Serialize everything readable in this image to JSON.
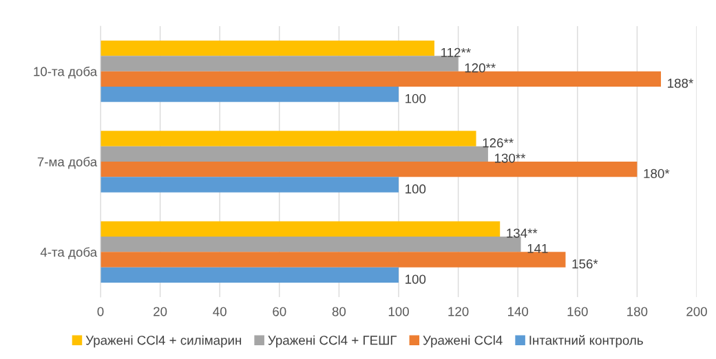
{
  "chart_data": {
    "type": "bar",
    "orientation": "horizontal",
    "categories": [
      "10-та доба",
      "7-ма доба",
      "4-та доба"
    ],
    "series": [
      {
        "name": "Уражені CCl4 + силімарин",
        "color": "#ffc000",
        "values": [
          112,
          126,
          134
        ],
        "value_labels": [
          "112**",
          "126**",
          "134**"
        ]
      },
      {
        "name": "Уражені CCl4 + ГЕШГ",
        "color": "#a5a5a5",
        "values": [
          120,
          130,
          141
        ],
        "value_labels": [
          "120**",
          "130**",
          "141"
        ]
      },
      {
        "name": "Уражені CCl4",
        "color": "#ed7d31",
        "values": [
          188,
          180,
          156
        ],
        "value_labels": [
          "188*",
          "180*",
          "156*"
        ]
      },
      {
        "name": "Інтактний контроль",
        "color": "#5b9bd5",
        "values": [
          100,
          100,
          100
        ],
        "value_labels": [
          "100",
          "100",
          "100"
        ]
      }
    ],
    "xlim": [
      0,
      200
    ],
    "xticks": [
      0,
      20,
      40,
      60,
      80,
      100,
      120,
      140,
      160,
      180,
      200
    ],
    "grid": "x",
    "legend": "bottom"
  }
}
